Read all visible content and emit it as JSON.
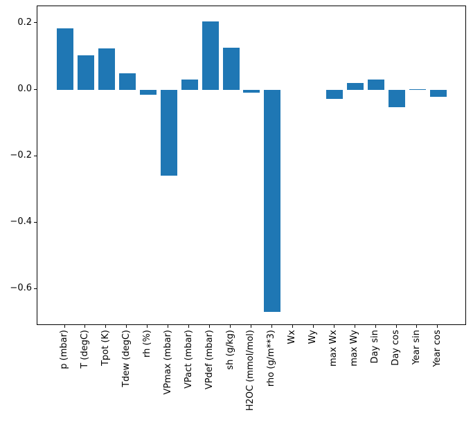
{
  "figure": {
    "background_color": "#ffffff",
    "title": ""
  },
  "chart_data": {
    "type": "bar",
    "title": "",
    "xlabel": "",
    "ylabel": "",
    "categories": [
      "p (mbar)",
      "T (degC)",
      "Tpot (K)",
      "Tdew (degC)",
      "rh (%)",
      "VPmax (mbar)",
      "VPact (mbar)",
      "VPdef (mbar)",
      "sh (g/kg)",
      "H2OC (mmol/mol)",
      "rho (g/m**3)",
      "Wx",
      "Wy",
      "max Wx",
      "max Wy",
      "Day sin",
      "Day cos",
      "Year sin",
      "Year cos"
    ],
    "values": [
      0.186,
      0.105,
      0.124,
      0.051,
      -0.014,
      -0.258,
      0.032,
      0.206,
      0.127,
      -0.009,
      -0.668,
      0.0,
      0.0,
      -0.028,
      0.02,
      0.032,
      -0.052,
      0.002,
      -0.021
    ],
    "yticks": [
      0.2,
      0.0,
      -0.2,
      -0.4,
      -0.6
    ],
    "ylim": [
      -0.71,
      0.252
    ],
    "grid": false,
    "legend": null,
    "bar_color": "#1f77b4",
    "axis_color": "#000000",
    "tick_label_rotation_deg": 90
  }
}
